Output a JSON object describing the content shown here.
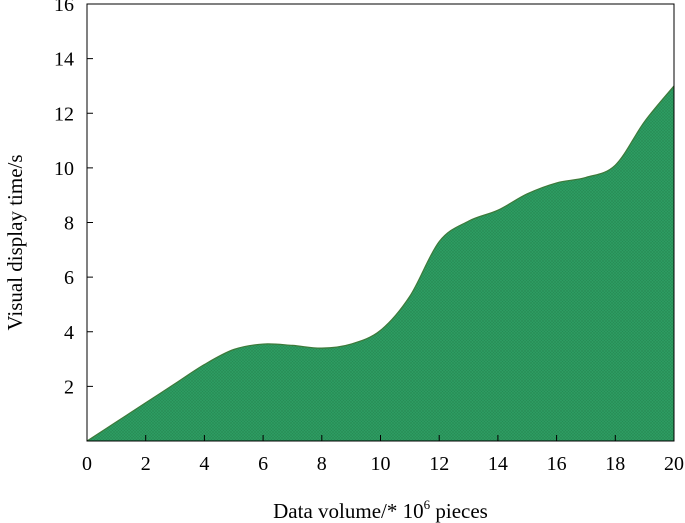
{
  "chart_data": {
    "type": "area",
    "xlabel": {
      "main": "Data volume/* 10",
      "sup": "6",
      "suffix": " pieces"
    },
    "ylabel": "Visual display time/s",
    "xlim": [
      0,
      20
    ],
    "ylim": [
      0,
      16
    ],
    "x_ticks": [
      0,
      2,
      4,
      6,
      8,
      10,
      12,
      14,
      16,
      18,
      20
    ],
    "y_ticks": [
      2,
      4,
      6,
      8,
      10,
      12,
      14,
      16
    ],
    "x": [
      0,
      1,
      2,
      3,
      4,
      5,
      6,
      7,
      8,
      9,
      10,
      11,
      12,
      13,
      14,
      15,
      16,
      17,
      18,
      19,
      20
    ],
    "values": [
      0,
      0.7,
      1.4,
      2.1,
      2.8,
      3.35,
      3.55,
      3.5,
      3.4,
      3.55,
      4.05,
      5.3,
      7.3,
      8.05,
      8.45,
      9.05,
      9.45,
      9.65,
      10.1,
      11.7,
      13.0
    ],
    "fill_color": "#2e9e63",
    "line_color": "#3d7a3a",
    "grid": false,
    "legend": "none"
  }
}
